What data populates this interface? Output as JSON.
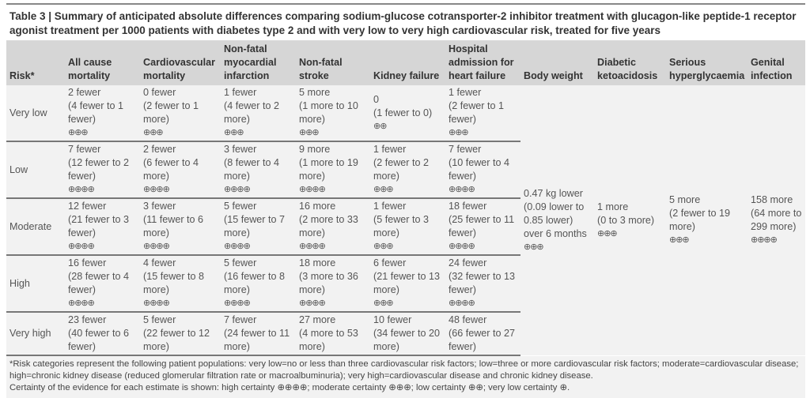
{
  "title": "Table 3 | Summary of anticipated absolute differences comparing sodium-glucose cotransporter-2 inhibitor treatment with glucagon-like peptide-1 receptor agonist treatment per 1000 patients with diabetes type 2 and with very low to very high cardiovascular risk, treated for five years",
  "headers": [
    "Risk*",
    "All cause mortality",
    "Cardiovascular mortality",
    "Non-fatal myocardial infarction",
    "Non-fatal stroke",
    "Kidney failure",
    "Hospital admission for heart failure",
    "Body weight",
    "Diabetic ketoacidosis",
    "Serious hyperglycaemia",
    "Genital infection"
  ],
  "rows": [
    {
      "risk": "Very low",
      "cells": [
        {
          "est": "2 fewer",
          "ci": "(4 fewer to 1 fewer)",
          "cert": "⊕⊕⊕"
        },
        {
          "est": "0 fewer",
          "ci": "(2 fewer to 1 more)",
          "cert": "⊕⊕⊕"
        },
        {
          "est": "1 fewer",
          "ci": "(4 fewer to 2 more)",
          "cert": "⊕⊕⊕"
        },
        {
          "est": "5 more",
          "ci": "(1 more to 10 more)",
          "cert": "⊕⊕⊕"
        },
        {
          "est": "0",
          "ci": "(1 fewer to 0)",
          "cert": "⊕⊕"
        },
        {
          "est": "1 fewer",
          "ci": "(2 fewer to 1 fewer)",
          "cert": "⊕⊕⊕"
        }
      ]
    },
    {
      "risk": "Low",
      "cells": [
        {
          "est": "7 fewer",
          "ci": "(12 fewer to 2 fewer)",
          "cert": "⊕⊕⊕⊕"
        },
        {
          "est": "2 fewer",
          "ci": "(6 fewer to 4 more)",
          "cert": "⊕⊕⊕⊕"
        },
        {
          "est": "3 fewer",
          "ci": "(8 fewer to 4 more)",
          "cert": "⊕⊕⊕⊕"
        },
        {
          "est": "9 more",
          "ci": "(1 more to 19 more)",
          "cert": "⊕⊕⊕⊕"
        },
        {
          "est": "1 fewer",
          "ci": "(2 fewer to 2 more)",
          "cert": "⊕⊕⊕"
        },
        {
          "est": "7 fewer",
          "ci": "(10 fewer to 4 fewer)",
          "cert": "⊕⊕⊕⊕"
        }
      ]
    },
    {
      "risk": "Moderate",
      "cells": [
        {
          "est": "12 fewer",
          "ci": "(21 fewer to 3 fewer)",
          "cert": "⊕⊕⊕⊕"
        },
        {
          "est": "3 fewer",
          "ci": "(11 fewer to 6 more)",
          "cert": "⊕⊕⊕⊕"
        },
        {
          "est": "5 fewer",
          "ci": "(15 fewer to 7 more)",
          "cert": "⊕⊕⊕⊕"
        },
        {
          "est": "16 more",
          "ci": "(2 more to 33 more)",
          "cert": "⊕⊕⊕⊕"
        },
        {
          "est": "1 fewer",
          "ci": "(5 fewer to 3 more)",
          "cert": "⊕⊕⊕"
        },
        {
          "est": "18 fewer",
          "ci": "(25 fewer to 11 fewer)",
          "cert": "⊕⊕⊕⊕"
        }
      ]
    },
    {
      "risk": "High",
      "cells": [
        {
          "est": "16 fewer",
          "ci": "(28 fewer to 4 fewer)",
          "cert": "⊕⊕⊕⊕"
        },
        {
          "est": "4 fewer",
          "ci": "(15 fewer to 8 more)",
          "cert": "⊕⊕⊕⊕"
        },
        {
          "est": "5 fewer",
          "ci": "(16 fewer to 8 more)",
          "cert": "⊕⊕⊕⊕"
        },
        {
          "est": "18 more",
          "ci": "(3 more to 36 more)",
          "cert": "⊕⊕⊕⊕"
        },
        {
          "est": "6 fewer",
          "ci": "(21 fewer to 13 more)",
          "cert": "⊕⊕⊕"
        },
        {
          "est": "24 fewer",
          "ci": "(32 fewer to 13 fewer)",
          "cert": "⊕⊕⊕⊕"
        }
      ]
    },
    {
      "risk": "Very high",
      "cells": [
        {
          "est": "23 fewer",
          "ci": "(40 fewer to 6 fewer)"
        },
        {
          "est": "5 fewer",
          "ci": "(22 fewer to 12 more)"
        },
        {
          "est": "7 fewer",
          "ci": "(24 fewer to 11 more)"
        },
        {
          "est": "27 more",
          "ci": "(4 more to 53 more)"
        },
        {
          "est": "10 fewer",
          "ci": "(34 fewer to 20 more)"
        },
        {
          "est": "48 fewer",
          "ci": "(66 fewer to 27 fewer)"
        }
      ]
    }
  ],
  "merged": [
    {
      "est": "0.47 kg lower",
      "ci": "(0.09 lower to 0.85 lower) over 6 months",
      "cert": "⊕⊕⊕"
    },
    {
      "est": "1 more",
      "ci": "(0 to 3 more)",
      "cert": "⊕⊕⊕"
    },
    {
      "est": "5 more",
      "ci": "(2 fewer to 19 more)",
      "cert": "⊕⊕⊕"
    },
    {
      "est": "158 more",
      "ci": "(64 more to 299 more)",
      "cert": "⊕⊕⊕⊕"
    }
  ],
  "footnotes": [
    "*Risk categories represent the following patient populations: very low=no or less than three cardiovascular risk factors; low=three or more cardiovascular risk factors; moderate=cardiovascular disease; high=chronic kidney disease (reduced glomerular filtration rate or macroalbuminuria); very high=cardiovascular disease and chronic kidney disease.",
    "Certainty of the evidence for each estimate is shown: high certainty ⊕⊕⊕⊕; moderate certainty ⊕⊕⊕; low certainty ⊕⊕; very low certainty ⊕."
  ]
}
